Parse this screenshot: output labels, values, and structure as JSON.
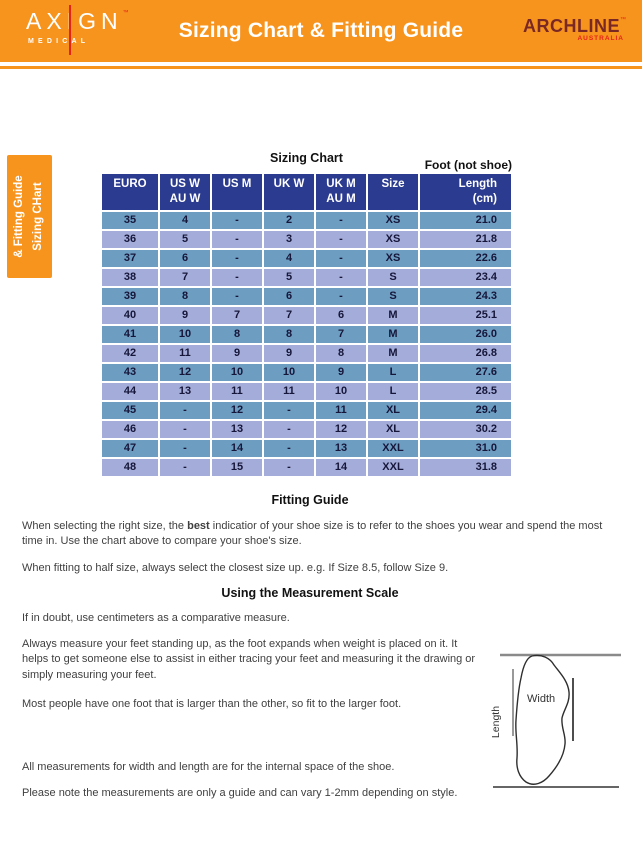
{
  "header": {
    "brand_left": {
      "name": "AXIGN",
      "trademark": "™",
      "tagline": "MEDICAL"
    },
    "page_title": "Sizing Chart & Fitting Guide",
    "brand_right": {
      "name": "ARCHLINE",
      "trademark": "™",
      "tagline": "AUSTRALIA"
    }
  },
  "side_tab": {
    "line1": "Sizing CHart",
    "line2": "& Fitting Guide"
  },
  "sizing_chart": {
    "title": "Sizing Chart",
    "annotation": "Foot (not shoe)",
    "table": {
      "headers": [
        [
          "EURO"
        ],
        [
          "US W",
          "AU W"
        ],
        [
          "US M"
        ],
        [
          "UK W"
        ],
        [
          "UK M",
          "AU M"
        ],
        [
          "Size"
        ],
        [
          "Length",
          "(cm)"
        ]
      ],
      "rows": [
        [
          "35",
          "4",
          "-",
          "2",
          "-",
          "XS",
          "21.0"
        ],
        [
          "36",
          "5",
          "-",
          "3",
          "-",
          "XS",
          "21.8"
        ],
        [
          "37",
          "6",
          "-",
          "4",
          "-",
          "XS",
          "22.6"
        ],
        [
          "38",
          "7",
          "-",
          "5",
          "-",
          "S",
          "23.4"
        ],
        [
          "39",
          "8",
          "-",
          "6",
          "-",
          "S",
          "24.3"
        ],
        [
          "40",
          "9",
          "7",
          "7",
          "6",
          "M",
          "25.1"
        ],
        [
          "41",
          "10",
          "8",
          "8",
          "7",
          "M",
          "26.0"
        ],
        [
          "42",
          "11",
          "9",
          "9",
          "8",
          "M",
          "26.8"
        ],
        [
          "43",
          "12",
          "10",
          "10",
          "9",
          "L",
          "27.6"
        ],
        [
          "44",
          "13",
          "11",
          "11",
          "10",
          "L",
          "28.5"
        ],
        [
          "45",
          "-",
          "12",
          "-",
          "11",
          "XL",
          "29.4"
        ],
        [
          "46",
          "-",
          "13",
          "-",
          "12",
          "XL",
          "30.2"
        ],
        [
          "47",
          "-",
          "14",
          "-",
          "13",
          "XXL",
          "31.0"
        ],
        [
          "48",
          "-",
          "15",
          "-",
          "14",
          "XXL",
          "31.8"
        ]
      ]
    }
  },
  "fitting_guide": {
    "heading": "Fitting Guide",
    "p1_prefix": "When selecting the right size, the ",
    "p1_bold": "best",
    "p1_suffix": " indicatior of your shoe size is to refer to the shoes you wear and spend the most time in. Use the chart above to compare your shoe's size.",
    "p2": "When fitting to half size, always select the closest size up. e.g. If Size 8.5, follow Size 9."
  },
  "measurement_scale": {
    "heading": "Using the Measurement Scale",
    "p1": "If in doubt, use centimeters as a comparative measure.",
    "p2": "Always measure your feet standing up, as the foot expands when weight is placed on it. It helps to get someone else to assist in either tracing your feet and measuring it the drawing or simply measuring your feet.",
    "p3": "Most people have one foot that is larger than the other, so fit to the larger foot.",
    "p4": "All measurements for width and length are for the internal space of the shoe.",
    "p5": "Please note the measurements are only a guide and can vary 1-2mm depending on style."
  },
  "diagram": {
    "width_label": "Width",
    "length_label": "Length"
  },
  "colors": {
    "accent_orange": "#F7941E",
    "table_header_blue": "#2B3B8F",
    "row_teal": "#6D9EC2",
    "row_periwinkle": "#A4ADD9",
    "brand_red": "#E5231B",
    "archline_maroon": "#7A2824"
  }
}
